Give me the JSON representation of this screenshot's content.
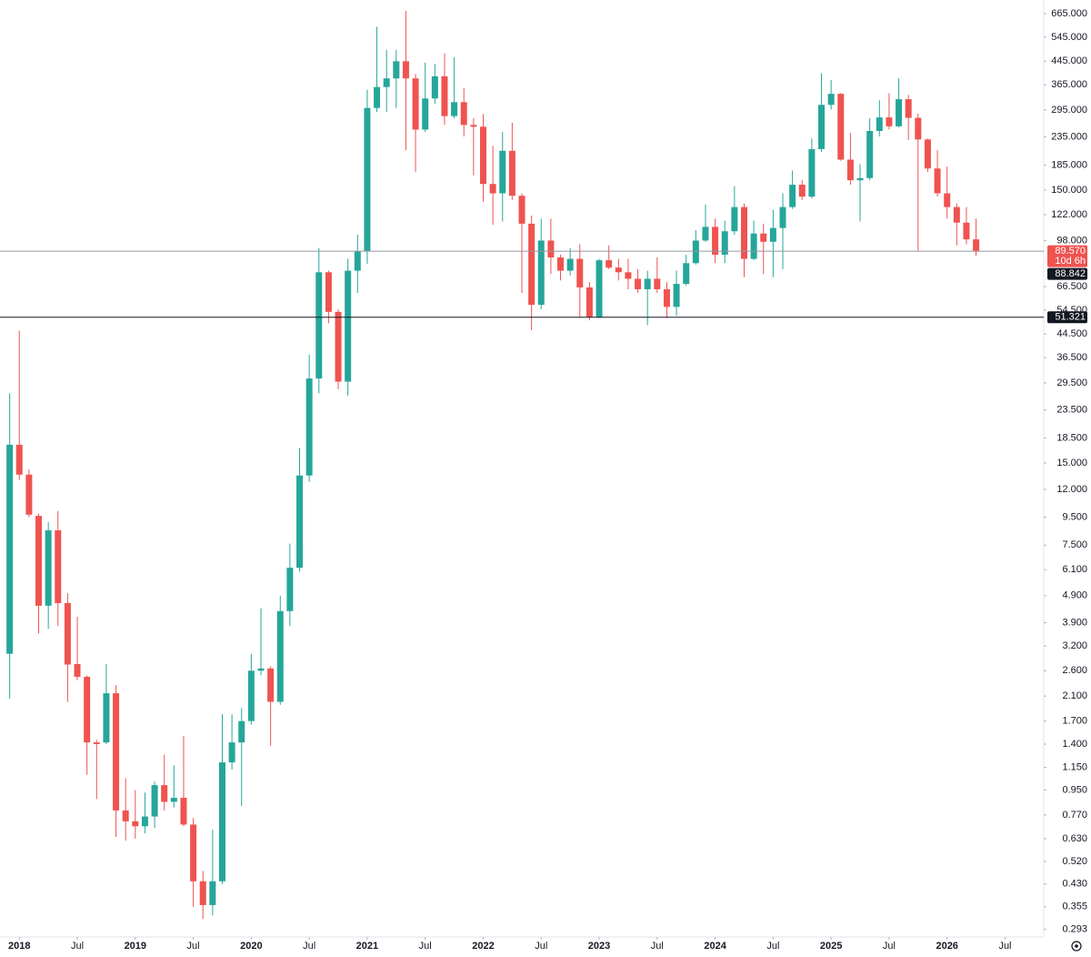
{
  "chart_data": {
    "type": "candlestick",
    "log_scale": true,
    "up_color": "#26a69a",
    "down_color": "#ef5350",
    "x": [
      "2017-12",
      "2018-01",
      "2018-02",
      "2018-03",
      "2018-04",
      "2018-05",
      "2018-06",
      "2018-07",
      "2018-08",
      "2018-09",
      "2018-10",
      "2018-11",
      "2018-12",
      "2019-01",
      "2019-02",
      "2019-03",
      "2019-04",
      "2019-05",
      "2019-06",
      "2019-07",
      "2019-08",
      "2019-09",
      "2019-10",
      "2019-11",
      "2019-12",
      "2020-01",
      "2020-02",
      "2020-03",
      "2020-04",
      "2020-05",
      "2020-06",
      "2020-07",
      "2020-08",
      "2020-09",
      "2020-10",
      "2020-11",
      "2020-12",
      "2021-01",
      "2021-02",
      "2021-03",
      "2021-04",
      "2021-05",
      "2021-06",
      "2021-07",
      "2021-08",
      "2021-09",
      "2021-10",
      "2021-11",
      "2021-12",
      "2022-01",
      "2022-02",
      "2022-03",
      "2022-04",
      "2022-05",
      "2022-06",
      "2022-07",
      "2022-08",
      "2022-09",
      "2022-10",
      "2022-11",
      "2022-12",
      "2023-01",
      "2023-02",
      "2023-03",
      "2023-04",
      "2023-05",
      "2023-06",
      "2023-07",
      "2023-08",
      "2023-09",
      "2023-10",
      "2023-11",
      "2023-12",
      "2024-01",
      "2024-02",
      "2024-03",
      "2024-04",
      "2024-05",
      "2024-06",
      "2024-07",
      "2024-08",
      "2024-09",
      "2024-10",
      "2024-11",
      "2024-12",
      "2025-01",
      "2025-02",
      "2025-03",
      "2025-04",
      "2025-05",
      "2025-06",
      "2025-07",
      "2025-08",
      "2025-09",
      "2025-10",
      "2025-11",
      "2025-12",
      "2026-01",
      "2026-02",
      "2026-03",
      "2026-04"
    ],
    "open": [
      3.0,
      17.5,
      13.6,
      9.6,
      4.5,
      8.5,
      4.6,
      2.75,
      2.47,
      1.42,
      1.42,
      2.15,
      0.8,
      0.73,
      0.7,
      0.76,
      0.99,
      0.86,
      0.89,
      0.71,
      0.44,
      0.36,
      0.44,
      1.2,
      1.42,
      1.7,
      2.6,
      2.65,
      2.0,
      4.3,
      6.2,
      13.5,
      30.6,
      75,
      53.7,
      29.8,
      76,
      89.5,
      300,
      358,
      385,
      445,
      385,
      250,
      325,
      392,
      280,
      315,
      260,
      256,
      158,
      146,
      209,
      143,
      113,
      57,
      98,
      85,
      76,
      84,
      66,
      51.3,
      83,
      78,
      75,
      71,
      65,
      71,
      65,
      56,
      68,
      81,
      98,
      110,
      87,
      106,
      130,
      84,
      104,
      97,
      109,
      130,
      157,
      142,
      212,
      308,
      338,
      194,
      163,
      166,
      247,
      277,
      257,
      323,
      276,
      230,
      180,
      146,
      130,
      114,
      99
    ],
    "high": [
      27,
      45.8,
      14.2,
      9.8,
      9.1,
      10.0,
      5.0,
      4.1,
      2.5,
      1.45,
      2.75,
      2.3,
      1.05,
      0.95,
      0.93,
      1.02,
      1.28,
      1.17,
      1.5,
      0.75,
      0.48,
      0.68,
      1.8,
      1.8,
      1.9,
      3.0,
      4.4,
      2.7,
      4.9,
      7.6,
      17,
      37.5,
      92,
      76,
      54.9,
      84,
      103,
      350,
      595,
      490,
      490,
      680,
      400,
      440,
      435,
      475,
      460,
      355,
      275,
      285,
      218,
      245,
      265,
      146,
      121,
      118,
      118,
      87,
      92,
      95,
      69,
      84,
      94,
      84,
      84,
      77,
      76,
      85,
      69,
      76,
      87,
      107,
      133,
      118,
      116,
      155,
      134,
      116,
      113,
      127,
      146,
      177,
      163,
      232,
      402,
      380,
      340,
      243,
      187,
      275,
      320,
      340,
      385,
      335,
      286,
      232,
      210,
      183,
      134,
      130,
      118
    ],
    "low": [
      2.05,
      13,
      9.5,
      3.56,
      3.7,
      3.8,
      2.0,
      2.4,
      1.08,
      0.88,
      1.4,
      0.64,
      0.62,
      0.63,
      0.66,
      0.69,
      0.8,
      0.82,
      0.7,
      0.355,
      0.32,
      0.33,
      0.43,
      1.13,
      0.83,
      1.65,
      2.5,
      1.38,
      1.95,
      3.8,
      6.0,
      12.8,
      27,
      48.8,
      28,
      26.5,
      63,
      80.6,
      290,
      290,
      300,
      210,
      175,
      245,
      310,
      260,
      275,
      236,
      170,
      136,
      112,
      115,
      138,
      63,
      46,
      55,
      74,
      70,
      73,
      51.3,
      50,
      51,
      77,
      70,
      65,
      63,
      48,
      63,
      51,
      52,
      67,
      80,
      97,
      81,
      81,
      103,
      72,
      83,
      74,
      72,
      77,
      128,
      138,
      140,
      207,
      296,
      192,
      157,
      115,
      163,
      236,
      250,
      255,
      229,
      90,
      175,
      142,
      118,
      94,
      95,
      86
    ],
    "close": [
      17.5,
      13.6,
      9.7,
      4.5,
      8.5,
      4.6,
      2.74,
      2.47,
      1.42,
      1.4,
      2.15,
      0.8,
      0.73,
      0.7,
      0.76,
      0.99,
      0.86,
      0.89,
      0.71,
      0.44,
      0.36,
      0.44,
      1.2,
      1.42,
      1.7,
      2.6,
      2.65,
      2.0,
      4.3,
      6.2,
      13.5,
      30.6,
      75,
      53.7,
      29.8,
      76,
      89.5,
      300,
      358,
      385,
      445,
      385,
      250,
      325,
      392,
      280,
      315,
      260,
      256,
      158,
      146,
      209,
      143,
      113,
      57,
      98,
      85,
      76,
      84,
      66,
      51.3,
      83,
      78,
      75,
      71,
      65,
      71,
      65,
      56,
      68,
      81,
      98,
      110,
      87,
      106,
      130,
      84,
      104,
      97,
      109,
      130,
      157,
      142,
      212,
      308,
      338,
      194,
      163,
      166,
      247,
      277,
      257,
      323,
      276,
      230,
      180,
      146,
      130,
      114,
      99,
      89.57
    ],
    "xlim": [
      "2017-11",
      "2026-11"
    ],
    "xticks": [
      {
        "value": "2018-01",
        "label": "2018"
      },
      {
        "value": "2018-07",
        "label": "Jul"
      },
      {
        "value": "2019-01",
        "label": "2019"
      },
      {
        "value": "2019-07",
        "label": "Jul"
      },
      {
        "value": "2020-01",
        "label": "2020"
      },
      {
        "value": "2020-07",
        "label": "Jul"
      },
      {
        "value": "2021-01",
        "label": "2021"
      },
      {
        "value": "2021-07",
        "label": "Jul"
      },
      {
        "value": "2022-01",
        "label": "2022"
      },
      {
        "value": "2022-07",
        "label": "Jul"
      },
      {
        "value": "2023-01",
        "label": "2023"
      },
      {
        "value": "2023-07",
        "label": "Jul"
      },
      {
        "value": "2024-01",
        "label": "2024"
      },
      {
        "value": "2024-07",
        "label": "Jul"
      },
      {
        "value": "2025-01",
        "label": "2025"
      },
      {
        "value": "2025-07",
        "label": "Jul"
      },
      {
        "value": "2026-01",
        "label": "2026"
      },
      {
        "value": "2026-07",
        "label": "Jul"
      }
    ],
    "ylim": [
      0.275,
      746
    ],
    "yticks": [
      {
        "value": 665,
        "label": "665.000"
      },
      {
        "value": 545,
        "label": "545.000"
      },
      {
        "value": 445,
        "label": "445.000"
      },
      {
        "value": 365,
        "label": "365.000"
      },
      {
        "value": 295,
        "label": "295.000"
      },
      {
        "value": 235,
        "label": "235.000"
      },
      {
        "value": 185,
        "label": "185.000"
      },
      {
        "value": 150,
        "label": "150.000"
      },
      {
        "value": 122,
        "label": "122.000"
      },
      {
        "value": 98,
        "label": "98.000"
      },
      {
        "value": 66.5,
        "label": "66.500"
      },
      {
        "value": 54.5,
        "label": "54.500"
      },
      {
        "value": 44.5,
        "label": "44.500"
      },
      {
        "value": 36.5,
        "label": "36.500"
      },
      {
        "value": 29.5,
        "label": "29.500"
      },
      {
        "value": 23.5,
        "label": "23.500"
      },
      {
        "value": 18.5,
        "label": "18.500"
      },
      {
        "value": 15,
        "label": "15.000"
      },
      {
        "value": 12,
        "label": "12.000"
      },
      {
        "value": 9.5,
        "label": "9.500"
      },
      {
        "value": 7.5,
        "label": "7.500"
      },
      {
        "value": 6.1,
        "label": "6.100"
      },
      {
        "value": 4.9,
        "label": "4.900"
      },
      {
        "value": 3.9,
        "label": "3.900"
      },
      {
        "value": 3.2,
        "label": "3.200"
      },
      {
        "value": 2.6,
        "label": "2.600"
      },
      {
        "value": 2.1,
        "label": "2.100"
      },
      {
        "value": 1.7,
        "label": "1.700"
      },
      {
        "value": 1.4,
        "label": "1.400"
      },
      {
        "value": 1.15,
        "label": "1.150"
      },
      {
        "value": 0.95,
        "label": "0.950"
      },
      {
        "value": 0.77,
        "label": "0.770"
      },
      {
        "value": 0.63,
        "label": "0.630"
      },
      {
        "value": 0.52,
        "label": "0.520"
      },
      {
        "value": 0.43,
        "label": "0.430"
      },
      {
        "value": 0.355,
        "label": "0.355"
      },
      {
        "value": 0.293,
        "label": "0.293"
      }
    ],
    "price_lines": [
      {
        "value": 89.57,
        "label": "89.570",
        "countdown": "10d 6h",
        "color": "#ef5350",
        "line_color": "#9598a1"
      },
      {
        "value": 51.321,
        "label": "51.321",
        "color": "#131722",
        "line_color": "#131722"
      }
    ],
    "price_labels": [
      {
        "value": 88.842,
        "label": "88.842",
        "color": "#131722"
      }
    ]
  }
}
